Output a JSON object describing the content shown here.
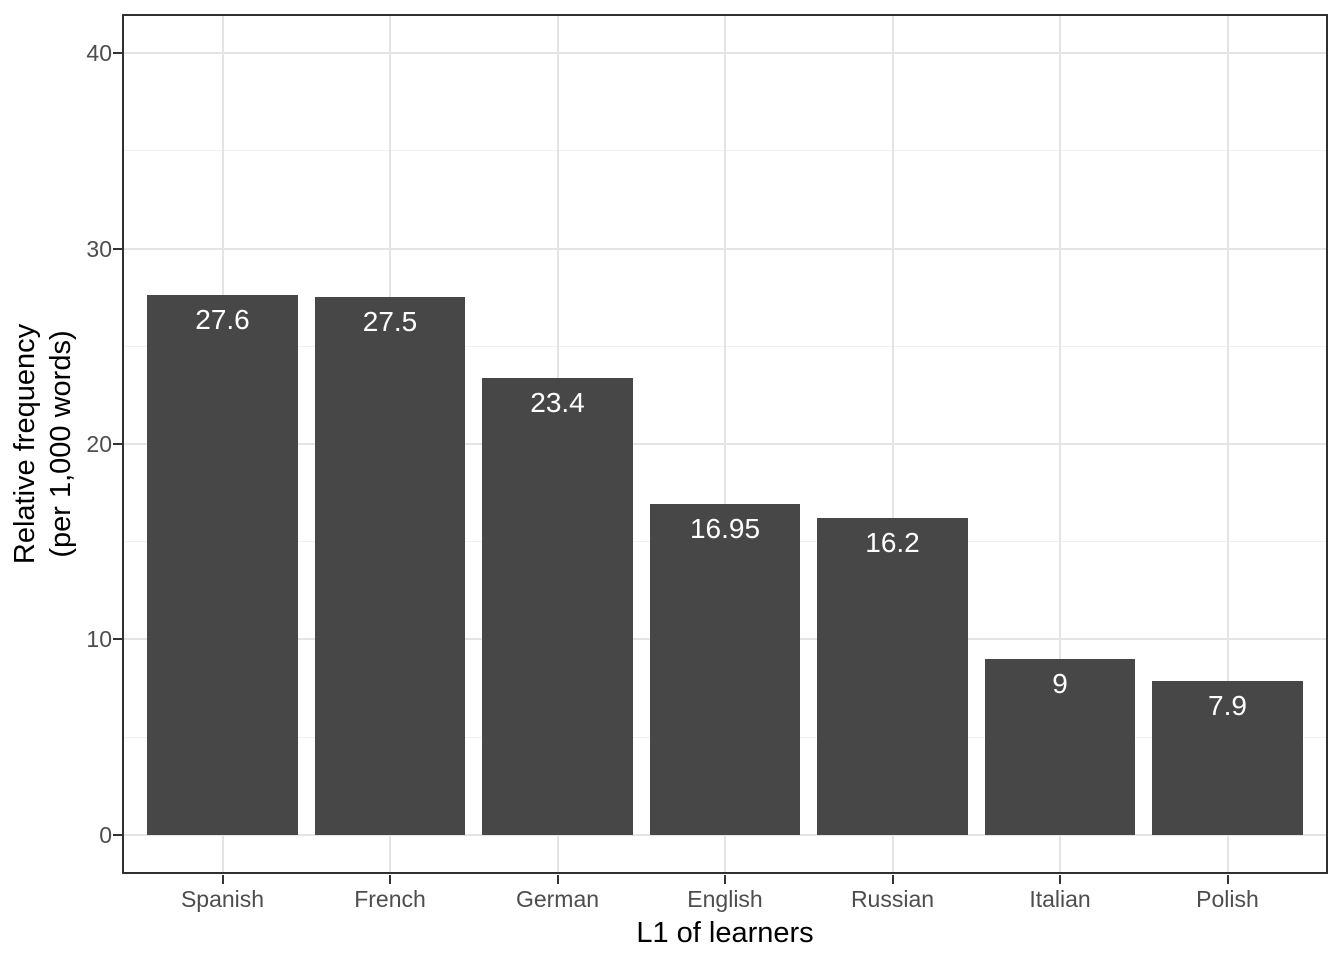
{
  "chart_data": {
    "type": "bar",
    "title": "",
    "categories": [
      "Spanish",
      "French",
      "German",
      "English",
      "Russian",
      "Italian",
      "Polish"
    ],
    "values": [
      27.6,
      27.5,
      23.4,
      16.95,
      16.2,
      9,
      7.9
    ],
    "value_labels": [
      "27.6",
      "27.5",
      "23.4",
      "16.95",
      "16.2",
      "9",
      "7.9"
    ],
    "xlabel": "L1 of learners",
    "ylabel": "Relative frequency (per 1,000 words)",
    "ylabel_line1": "Relative frequency",
    "ylabel_line2": "(per 1,000 words)",
    "y_ticks": [
      0,
      10,
      20,
      30,
      40
    ],
    "y_tick_labels": [
      "0",
      "10",
      "20",
      "30",
      "40"
    ],
    "y_minor_ticks": [
      5,
      15,
      25,
      35
    ],
    "ylim": [
      -2,
      42
    ],
    "grid": "major-and-minor",
    "legend": "none",
    "bar_width_fraction": 0.9,
    "colors": {
      "bar_fill": "#474747",
      "bar_label_text": "#ffffff",
      "grid_major": "#e4e4e4",
      "grid_minor": "#f0f0f0",
      "panel_border": "#303030",
      "tick_mark": "#333333",
      "tick_label_text": "#4d4d4d",
      "axis_title_text": "#000000",
      "background": "#ffffff"
    }
  }
}
